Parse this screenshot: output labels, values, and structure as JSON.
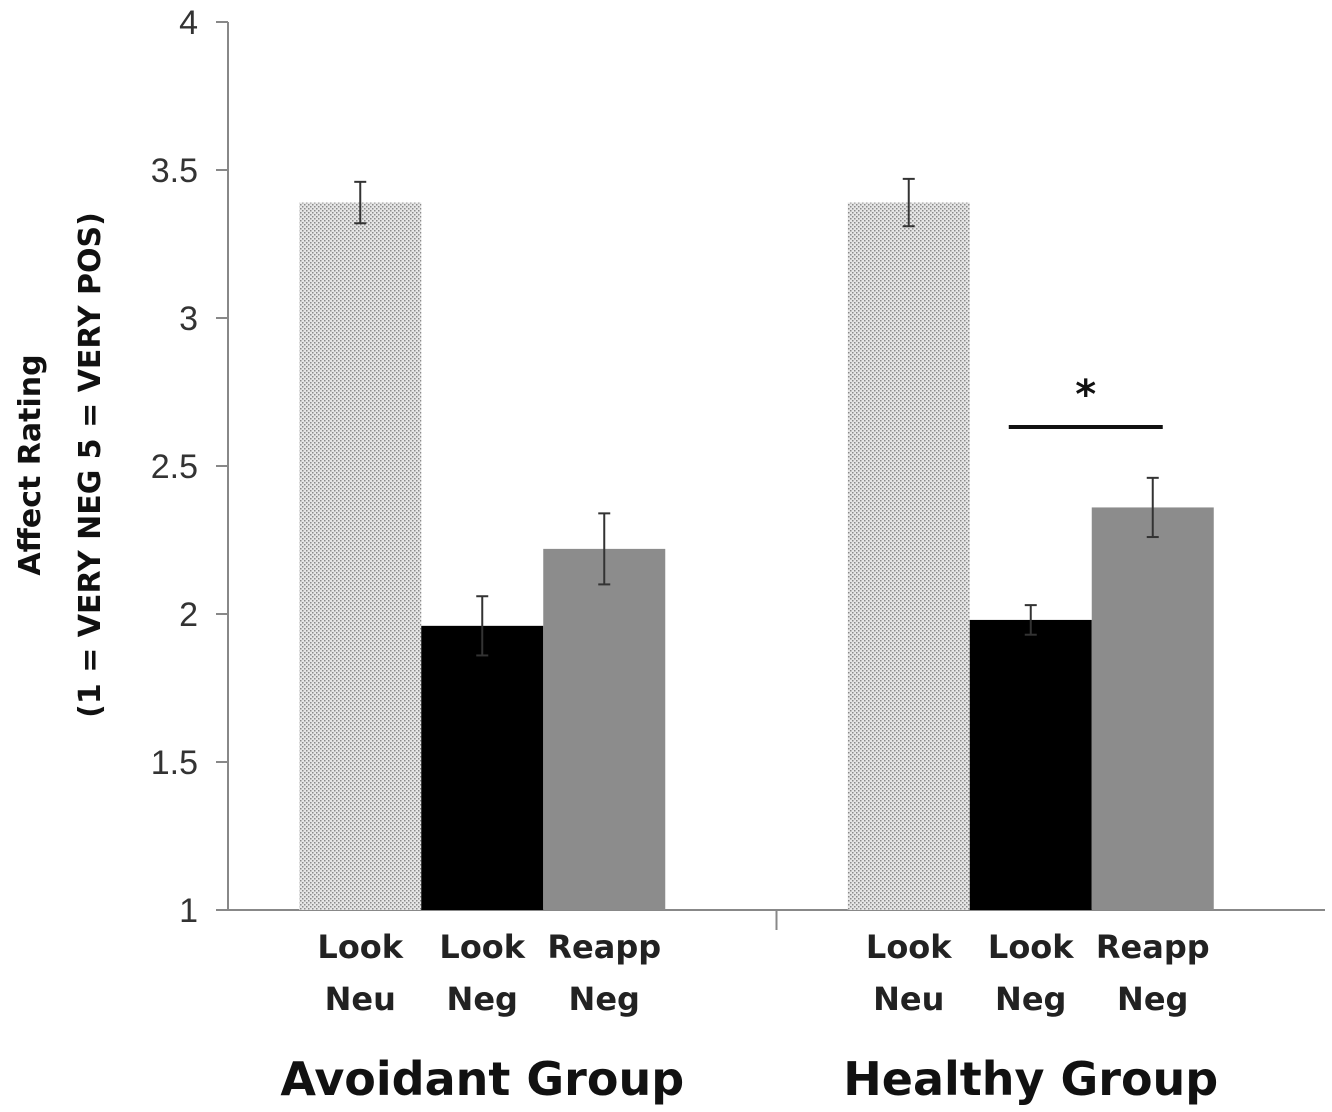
{
  "chart_data": {
    "type": "bar",
    "ylabel_line1": "Affect Rating",
    "ylabel_line2": "(1 = VERY NEG   5 = VERY POS)",
    "ylim": [
      1,
      4
    ],
    "yticks": [
      "1",
      "1.5",
      "2",
      "2.5",
      "3",
      "3.5",
      "4"
    ],
    "grid": false,
    "groups": [
      {
        "name": "Avoidant Group",
        "bars": [
          {
            "label_line1": "Look",
            "label_line2": "Neu",
            "value": 3.39,
            "error": 0.07,
            "fill": "stipple",
            "color": "#d4d4d4"
          },
          {
            "label_line1": "Look",
            "label_line2": "Neg",
            "value": 1.96,
            "error": 0.1,
            "fill": "solid",
            "color": "#000000"
          },
          {
            "label_line1": "Reapp",
            "label_line2": "Neg",
            "value": 2.22,
            "error": 0.12,
            "fill": "solid",
            "color": "#8c8c8c"
          }
        ]
      },
      {
        "name": "Healthy Group",
        "bars": [
          {
            "label_line1": "Look",
            "label_line2": "Neu",
            "value": 3.39,
            "error": 0.08,
            "fill": "stipple",
            "color": "#d4d4d4"
          },
          {
            "label_line1": "Look",
            "label_line2": "Neg",
            "value": 1.98,
            "error": 0.05,
            "fill": "solid",
            "color": "#000000"
          },
          {
            "label_line1": "Reapp",
            "label_line2": "Neg",
            "value": 2.36,
            "error": 0.1,
            "fill": "solid",
            "color": "#8c8c8c"
          }
        ]
      }
    ],
    "significance": {
      "group": 1,
      "from_bar": 1,
      "to_bar": 2,
      "symbol": "*"
    }
  }
}
